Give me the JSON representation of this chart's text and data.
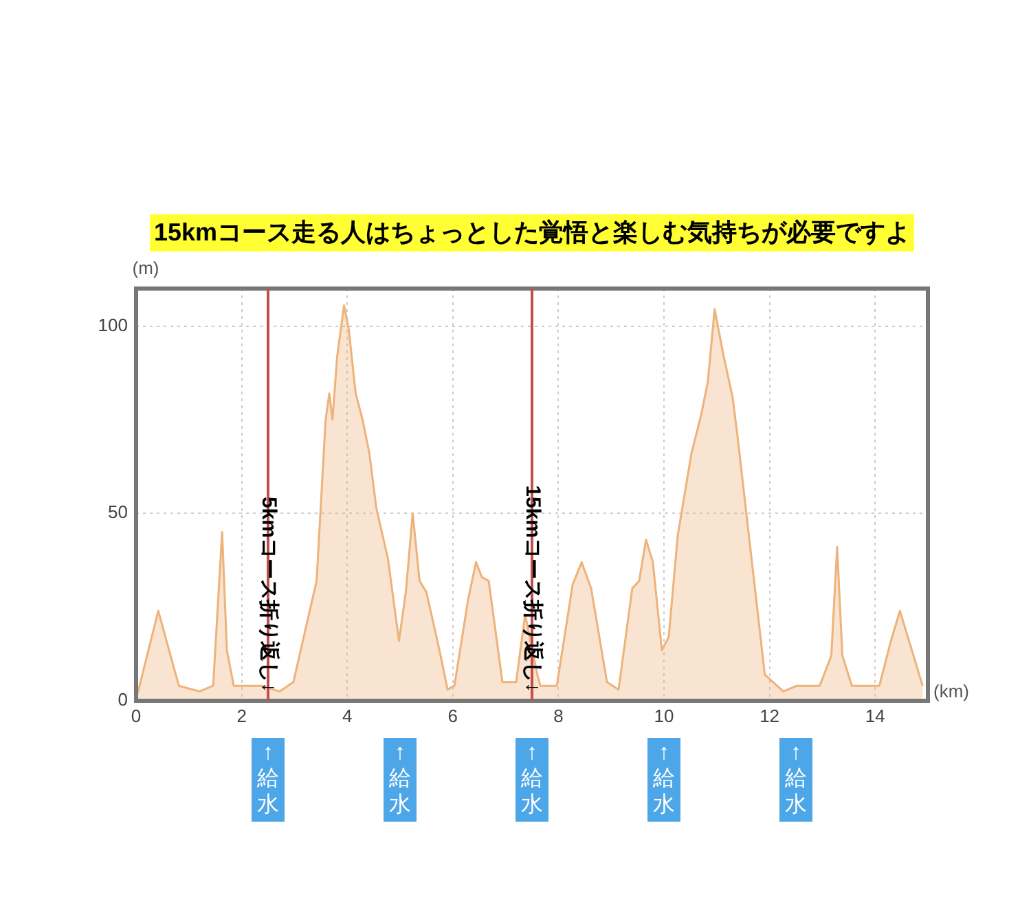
{
  "chart_data": {
    "type": "area",
    "title": "15kmコース走る人はちょっとした覚悟と楽しむ気持ちが必要ですよ",
    "xlabel": "(km)",
    "ylabel": "(m)",
    "xlim": [
      0,
      15
    ],
    "xticks": [
      0,
      2,
      4,
      6,
      8,
      10,
      12,
      14
    ],
    "ylim": [
      0,
      110
    ],
    "yticks": [
      0,
      50,
      100
    ],
    "grid": true,
    "legend": false,
    "marker": "none",
    "series": [
      {
        "color": "#eeb27a",
        "x": [
          0.03,
          0.42,
          0.81,
          1.2,
          1.46,
          1.63,
          1.72,
          1.85,
          2.37,
          2.72,
          2.98,
          3.42,
          3.59,
          3.66,
          3.72,
          3.81,
          3.94,
          4.03,
          4.16,
          4.29,
          4.42,
          4.55,
          4.77,
          4.98,
          5.11,
          5.24,
          5.37,
          5.5,
          5.77,
          5.9,
          6.03,
          6.29,
          6.44,
          6.55,
          6.68,
          6.94,
          7.2,
          7.37,
          7.6,
          7.66,
          7.97,
          8.27,
          8.44,
          8.62,
          8.92,
          9.14,
          9.4,
          9.53,
          9.66,
          9.79,
          9.96,
          10.09,
          10.26,
          10.52,
          10.7,
          10.83,
          10.96,
          11.13,
          11.3,
          11.39,
          11.91,
          12.26,
          12.52,
          12.95,
          13.17,
          13.28,
          13.38,
          13.56,
          14.08,
          14.3,
          14.47,
          14.9
        ],
        "values": [
          2,
          24,
          4,
          2.5,
          4,
          45,
          13.5,
          4,
          4,
          2.5,
          5,
          32,
          75,
          82,
          75,
          92,
          105.5,
          99,
          82,
          75,
          66,
          51.5,
          38,
          16,
          29,
          50,
          32,
          29,
          12,
          3,
          4,
          27,
          37,
          33,
          32,
          5,
          5,
          23,
          7,
          4,
          4,
          31,
          37,
          30,
          5,
          3,
          30,
          32,
          43,
          37,
          13.5,
          17,
          44,
          66,
          76,
          85,
          104.5,
          92,
          81,
          71,
          7,
          2.5,
          4,
          4,
          12,
          41,
          12,
          4,
          4,
          16,
          24,
          4
        ]
      }
    ],
    "ref_lines": [
      {
        "axis": "x",
        "value": 2.5,
        "label": "5kmコース折り返し↓",
        "color": "#c0504d"
      },
      {
        "axis": "x",
        "value": 7.5,
        "label": "15kmコース折り返し↓",
        "color": "#c0504d"
      }
    ],
    "annotations": [
      "↑給水",
      "↑給水",
      "↑給水",
      "↑給水",
      "↑給水"
    ]
  }
}
